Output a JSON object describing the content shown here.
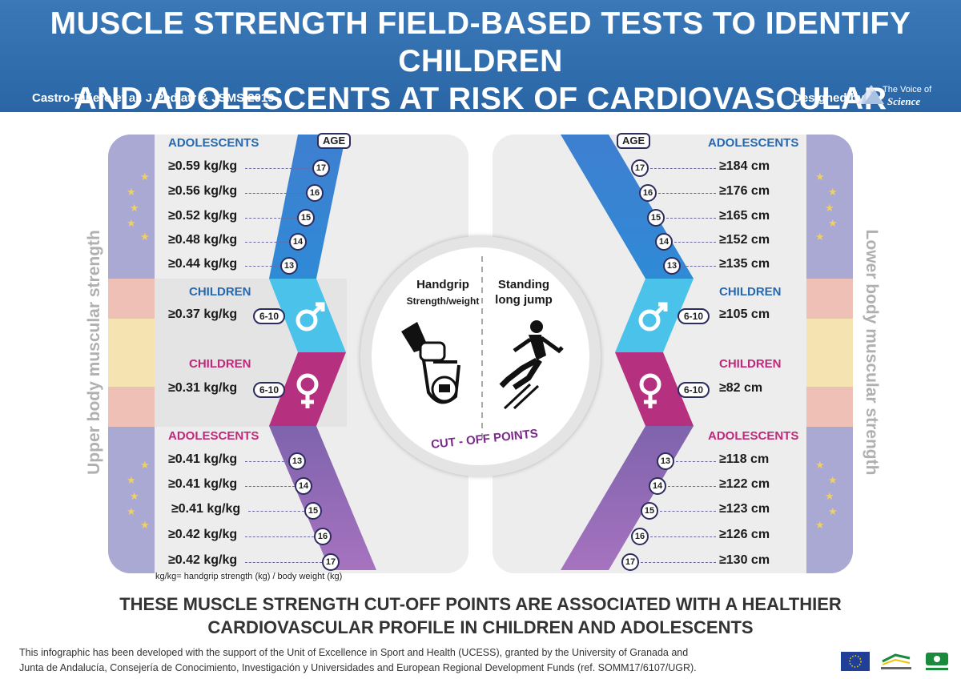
{
  "header": {
    "title_line1": "MUSCLE STRENGTH FIELD-BASED TESTS TO IDENTIFY CHILDREN",
    "title_line2": "AND ADOLESCENTS AT RISK OF CARDIOVASCULAR DISEASE",
    "citation": "Castro-Piñero et al. J Pediatr & JSMS 2019",
    "designed_by": "Designed by",
    "brand_line1": "The Voice of",
    "brand_line2": "Science"
  },
  "left": {
    "side_label": "Upper body muscular strength",
    "age_label": "AGE",
    "adolescents_male_label": "ADOLESCENTS",
    "adolescents_male": [
      {
        "value": "≥0.59 kg/kg",
        "age": "17"
      },
      {
        "value": "≥0.56 kg/kg",
        "age": "16"
      },
      {
        "value": "≥0.52 kg/kg",
        "age": "15"
      },
      {
        "value": "≥0.48 kg/kg",
        "age": "14"
      },
      {
        "value": "≥0.44 kg/kg",
        "age": "13"
      }
    ],
    "children_male_label": "CHILDREN",
    "children_male": {
      "value": "≥0.37 kg/kg",
      "age": "6-10"
    },
    "children_female_label": "CHILDREN",
    "children_female": {
      "value": "≥0.31 kg/kg",
      "age": "6-10"
    },
    "adolescents_female_label": "ADOLESCENTS",
    "adolescents_female": [
      {
        "value": "≥0.41 kg/kg",
        "age": "13"
      },
      {
        "value": "≥0.41 kg/kg",
        "age": "14"
      },
      {
        "value": "≥0.41 kg/kg",
        "age": "15"
      },
      {
        "value": "≥0.42 kg/kg",
        "age": "16"
      },
      {
        "value": "≥0.42 kg/kg",
        "age": "17"
      }
    ],
    "footnote": "kg/kg= handgrip strength (kg) / body weight (kg)"
  },
  "right": {
    "side_label": "Lower body muscular strength",
    "age_label": "AGE",
    "adolescents_male_label": "ADOLESCENTS",
    "adolescents_male": [
      {
        "value": "≥184 cm",
        "age": "17"
      },
      {
        "value": "≥176 cm",
        "age": "16"
      },
      {
        "value": "≥165 cm",
        "age": "15"
      },
      {
        "value": "≥152 cm",
        "age": "14"
      },
      {
        "value": "≥135 cm",
        "age": "13"
      }
    ],
    "children_male_label": "CHILDREN",
    "children_male": {
      "value": "≥105 cm",
      "age": "6-10"
    },
    "children_female_label": "CHILDREN",
    "children_female": {
      "value": "≥82 cm",
      "age": "6-10"
    },
    "adolescents_female_label": "ADOLESCENTS",
    "adolescents_female": [
      {
        "value": "≥118 cm",
        "age": "13"
      },
      {
        "value": "≥122 cm",
        "age": "14"
      },
      {
        "value": "≥123 cm",
        "age": "15"
      },
      {
        "value": "≥126 cm",
        "age": "16"
      },
      {
        "value": "≥130 cm",
        "age": "17"
      }
    ]
  },
  "center": {
    "handgrip": "Handgrip",
    "handgrip_sub": "Strength/weight",
    "jump_line1": "Standing",
    "jump_line2": "long jump",
    "cutoff": "CUT - OFF POINTS"
  },
  "bottom": {
    "line1": "THESE MUSCLE STRENGTH CUT-OFF POINTS ARE ASSOCIATED WITH A HEALTHIER",
    "line2": "CARDIOVASCULAR PROFILE IN CHILDREN AND ADOLESCENTS",
    "credit1": "This infographic has been developed with the support of the Unit of Excellence in Sport and Health (UCESS), granted by the University of Granada and",
    "credit2": "Junta de  Andalucía, Consejería de Conocimiento, Investigación y Universidades and European Regional Development Funds (ref. SOMM17/6107/UGR)."
  },
  "colors": {
    "header_blue": "#2f6fb0",
    "male_blue": "#3a8fd6",
    "male_light": "#4cc0ea",
    "female_magenta": "#b8307f",
    "female_purple": "#8a5bb0",
    "eu_blue": "#8c8cc8",
    "spain_red": "#efb9b0",
    "spain_yellow": "#f5e3ae"
  },
  "icons": [
    "male-symbol-icon",
    "female-symbol-icon",
    "handgrip-dynamometer-icon",
    "long-jump-athlete-icon",
    "eu-flag-icon"
  ]
}
